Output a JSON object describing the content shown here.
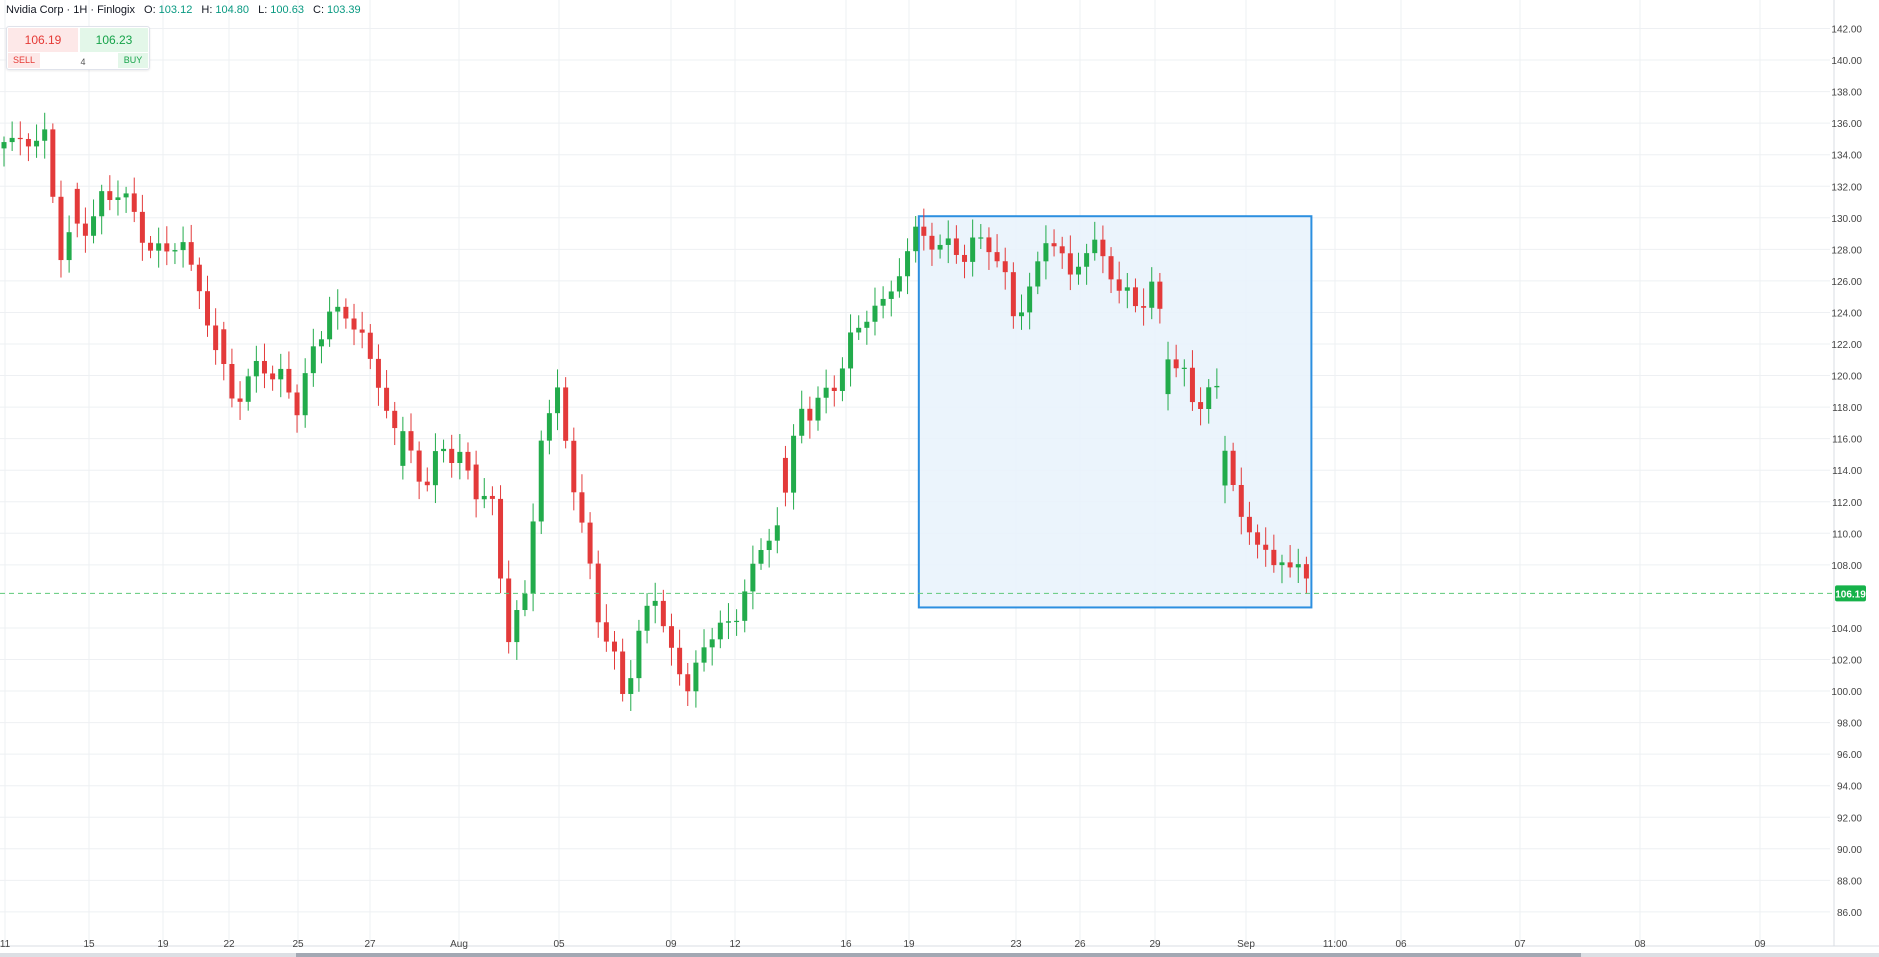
{
  "legend": {
    "symbol": "Nvidia Corp · 1H · Finlogix",
    "o_label": "O:",
    "o": "103.12",
    "h_label": "H:",
    "h": "104.80",
    "l_label": "L:",
    "l": "100.63",
    "c_label": "C:",
    "c": "103.39"
  },
  "trade": {
    "sell_price": "106.19",
    "buy_price": "106.23",
    "quantity": "4",
    "sell_label": "SELL",
    "buy_label": "BUY"
  },
  "colors": {
    "up": "#22ab4b",
    "down": "#e33a3a",
    "grid": "#eef0f3",
    "box_fill": "#e7f2fc",
    "box_border": "#2c8fe0",
    "price_line": "#5fc97a",
    "price_tag": "#16b24a"
  },
  "chart_data": {
    "type": "candlestick",
    "symbol": "Nvidia Corp",
    "interval": "1H",
    "last_price": 106.19,
    "last_price_label": "106.19",
    "y_ticks": [
      "142.00",
      "140.00",
      "138.00",
      "136.00",
      "134.00",
      "132.00",
      "130.00",
      "128.00",
      "126.00",
      "124.00",
      "122.00",
      "120.00",
      "118.00",
      "116.00",
      "114.00",
      "112.00",
      "110.00",
      "108.00",
      "104.00",
      "102.00",
      "100.00",
      "98.00",
      "96.00",
      "94.00",
      "92.00",
      "90.00",
      "88.00",
      "86.00"
    ],
    "x_ticks": [
      "11",
      "15",
      "19",
      "22",
      "25",
      "27",
      "Aug",
      "05",
      "09",
      "12",
      "16",
      "19",
      "23",
      "26",
      "29",
      "Sep",
      "11:00",
      "06",
      "07",
      "08",
      "09"
    ],
    "anchors": [
      [
        0,
        134.8
      ],
      [
        5,
        135.0
      ],
      [
        7,
        128.0
      ],
      [
        12,
        130.8
      ],
      [
        14,
        132.0
      ],
      [
        18,
        128.0
      ],
      [
        20,
        127.9
      ],
      [
        22,
        128.5
      ],
      [
        28,
        118.5
      ],
      [
        32,
        120.8
      ],
      [
        36,
        118.3
      ],
      [
        40,
        124.3
      ],
      [
        44,
        122.8
      ],
      [
        46,
        119.0
      ],
      [
        52,
        113.0
      ],
      [
        54,
        115.8
      ],
      [
        58,
        113.0
      ],
      [
        60,
        111.5
      ],
      [
        62,
        103.5
      ],
      [
        64,
        106.0
      ],
      [
        66,
        116.0
      ],
      [
        68,
        119.0
      ],
      [
        70,
        113.0
      ],
      [
        73,
        105.0
      ],
      [
        76,
        100.0
      ],
      [
        80,
        106.5
      ],
      [
        82,
        102.0
      ],
      [
        84,
        100.5
      ],
      [
        88,
        104.5
      ],
      [
        90,
        104.2
      ],
      [
        92,
        108.5
      ],
      [
        94,
        109.0
      ],
      [
        96,
        113.0
      ],
      [
        98,
        117.8
      ],
      [
        101,
        118.5
      ],
      [
        104,
        122.0
      ],
      [
        106,
        124.0
      ],
      [
        108,
        124.5
      ],
      [
        110,
        126.5
      ],
      [
        112,
        129.2
      ],
      [
        114,
        128.4
      ],
      [
        118,
        127.8
      ],
      [
        121,
        128.7
      ],
      [
        124,
        124.2
      ],
      [
        126,
        125.0
      ],
      [
        128,
        129.0
      ],
      [
        131,
        126.5
      ],
      [
        134,
        128.4
      ],
      [
        137,
        125.5
      ],
      [
        139,
        124.5
      ],
      [
        141,
        125.5
      ],
      [
        143,
        121.8
      ],
      [
        146,
        118.5
      ],
      [
        149,
        118.9
      ],
      [
        150,
        115.8
      ],
      [
        152,
        110.6
      ],
      [
        155,
        109.0
      ],
      [
        156,
        107.8
      ],
      [
        159,
        108.3
      ],
      [
        160,
        106.6
      ]
    ],
    "gaps": [
      [
        9,
        9
      ],
      [
        27,
        27
      ],
      [
        49,
        49
      ],
      [
        58,
        58
      ],
      [
        96,
        96
      ],
      [
        143,
        143
      ],
      [
        150,
        150
      ]
    ],
    "selection": {
      "from_index": 113,
      "to_index": 160,
      "top": 130.1,
      "bottom": 105.3
    },
    "ylim": [
      85,
      143
    ],
    "grid": true
  }
}
